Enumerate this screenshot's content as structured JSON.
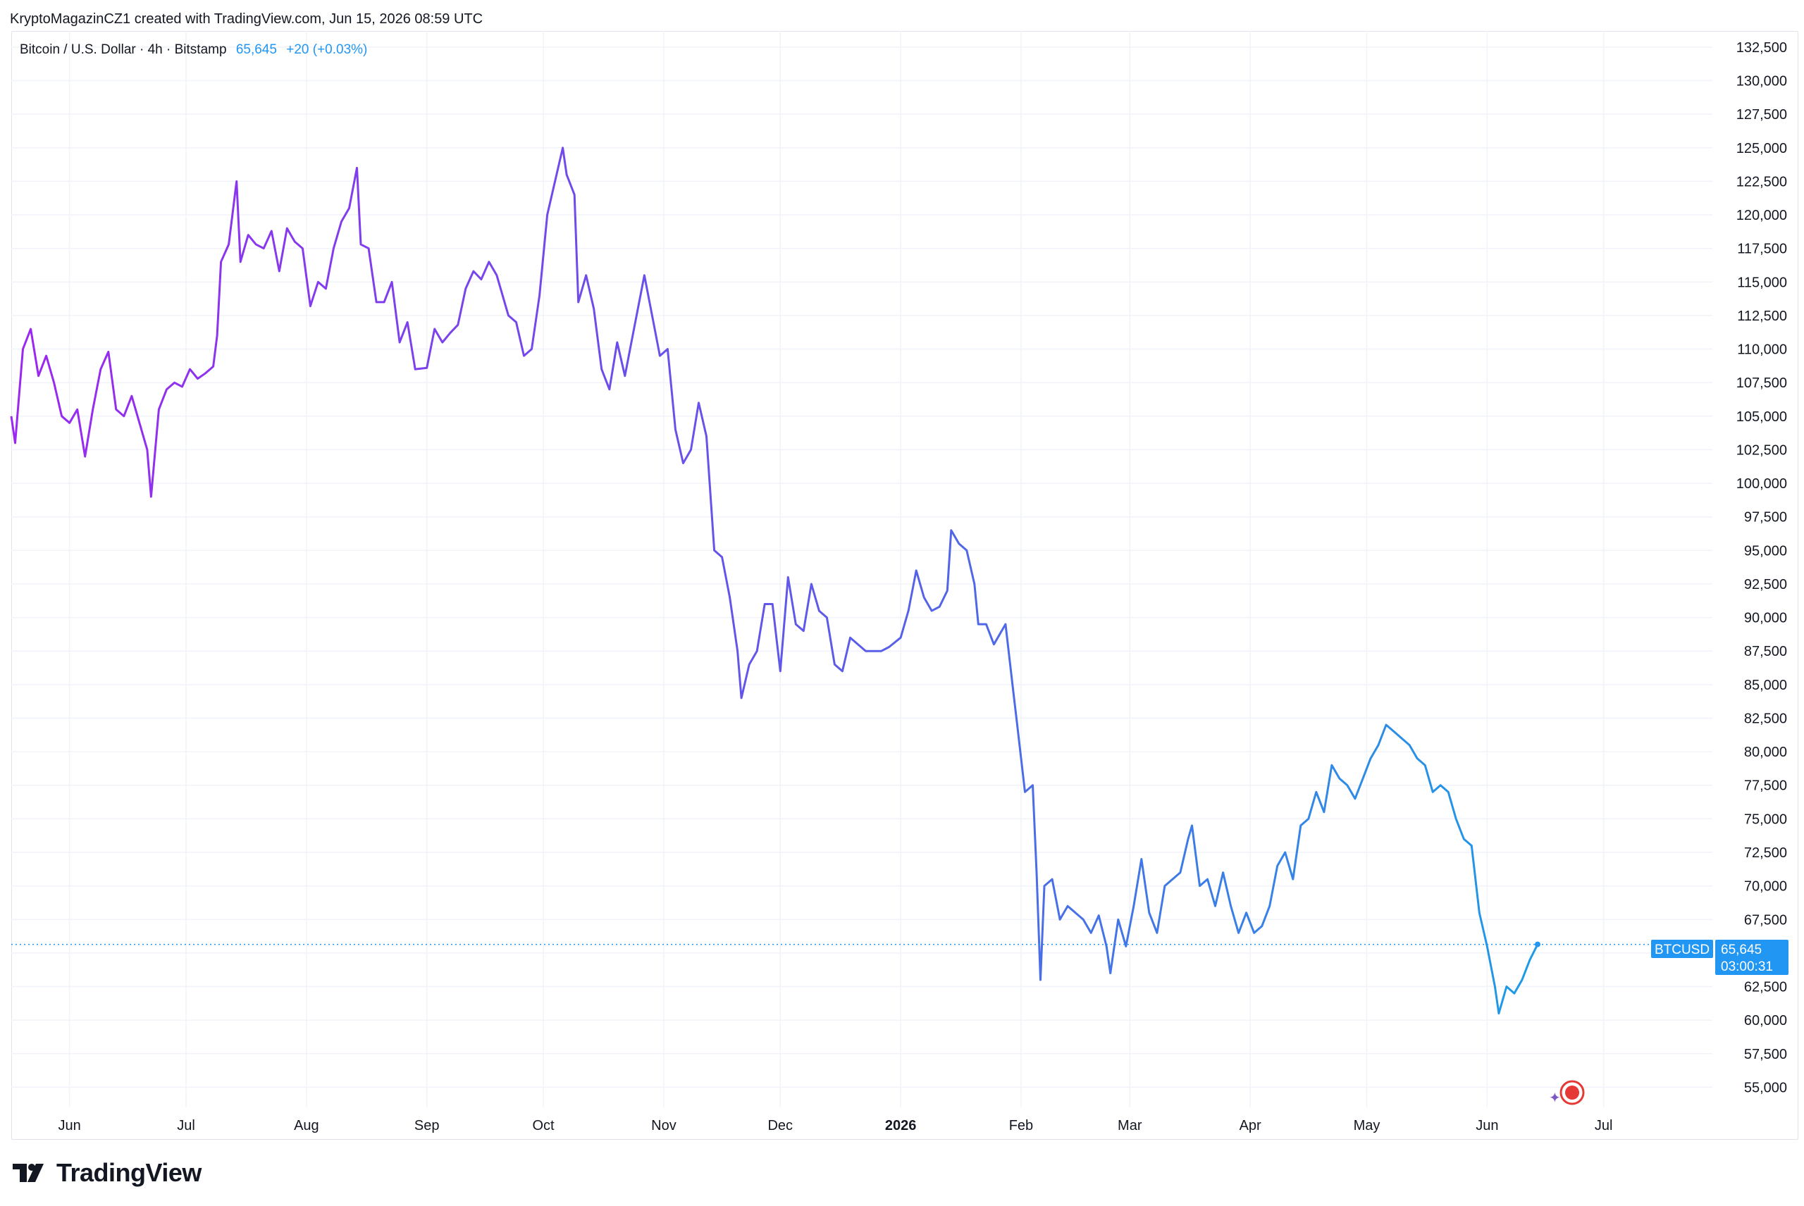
{
  "header": {
    "attribution": "KryptoMagazinCZ1 created with TradingView.com, Jun 15, 2026 08:59 UTC"
  },
  "legend": {
    "symbol": "Bitcoin / U.S. Dollar · 4h · Bitstamp",
    "price": "65,645",
    "change": "+20 (+0.03%)"
  },
  "price_tag": {
    "ticker": "BTCUSD",
    "price": "65,645",
    "countdown": "03:00:31"
  },
  "footer": {
    "brand": "TradingView"
  },
  "colors": {
    "gradient_start": "#9c27f0",
    "gradient_mid": "#5b5ce8",
    "gradient_end": "#1e9be6",
    "accent": "#2196f3",
    "grid": "#f0f3fa"
  },
  "chart_data": {
    "type": "line",
    "title": "Bitcoin / U.S. Dollar · 4h · Bitstamp",
    "xlabel": "",
    "ylabel": "",
    "ylim": [
      53500,
      133700
    ],
    "y_ticks": [
      55000,
      57500,
      60000,
      62500,
      65000,
      67500,
      70000,
      72500,
      75000,
      77500,
      80000,
      82500,
      85000,
      87500,
      90000,
      92500,
      95000,
      97500,
      100000,
      102500,
      105000,
      107500,
      110000,
      112500,
      115000,
      117500,
      120000,
      122500,
      125000,
      127500,
      130000,
      132500
    ],
    "y_tick_labels": [
      "55,000",
      "57,500",
      "60,000",
      "62,500",
      "65,000",
      "67,500",
      "70,000",
      "72,500",
      "75,000",
      "77,500",
      "80,000",
      "82,500",
      "85,000",
      "87,500",
      "90,000",
      "92,500",
      "95,000",
      "97,500",
      "100,000",
      "102,500",
      "105,000",
      "107,500",
      "110,000",
      "112,500",
      "115,000",
      "117,500",
      "120,000",
      "122,500",
      "125,000",
      "127,500",
      "130,000",
      "132,500"
    ],
    "x_range": [
      "2025-05-17",
      "2026-07-29"
    ],
    "x_ticks": [
      {
        "date": "2025-06-01",
        "label": "Jun"
      },
      {
        "date": "2025-07-01",
        "label": "Jul"
      },
      {
        "date": "2025-08-01",
        "label": "Aug"
      },
      {
        "date": "2025-09-01",
        "label": "Sep"
      },
      {
        "date": "2025-10-01",
        "label": "Oct"
      },
      {
        "date": "2025-11-01",
        "label": "Nov"
      },
      {
        "date": "2025-12-01",
        "label": "Dec"
      },
      {
        "date": "2026-01-01",
        "label": "2026",
        "bold": true
      },
      {
        "date": "2026-02-01",
        "label": "Feb"
      },
      {
        "date": "2026-03-01",
        "label": "Mar"
      },
      {
        "date": "2026-04-01",
        "label": "Apr"
      },
      {
        "date": "2026-05-01",
        "label": "May"
      },
      {
        "date": "2026-06-01",
        "label": "Jun"
      },
      {
        "date": "2026-07-01",
        "label": "Jul"
      }
    ],
    "last_price": 65645,
    "grid": true,
    "series": [
      {
        "values": [
          [
            "2025-05-17",
            105000
          ],
          [
            "2025-05-18",
            103000
          ],
          [
            "2025-05-20",
            110000
          ],
          [
            "2025-05-22",
            111500
          ],
          [
            "2025-05-24",
            108000
          ],
          [
            "2025-05-26",
            109500
          ],
          [
            "2025-05-28",
            107500
          ],
          [
            "2025-05-30",
            105000
          ],
          [
            "2025-06-01",
            104500
          ],
          [
            "2025-06-03",
            105500
          ],
          [
            "2025-06-05",
            102000
          ],
          [
            "2025-06-07",
            105500
          ],
          [
            "2025-06-09",
            108500
          ],
          [
            "2025-06-11",
            109800
          ],
          [
            "2025-06-13",
            105500
          ],
          [
            "2025-06-15",
            105000
          ],
          [
            "2025-06-17",
            106500
          ],
          [
            "2025-06-19",
            104500
          ],
          [
            "2025-06-21",
            102500
          ],
          [
            "2025-06-22",
            99000
          ],
          [
            "2025-06-24",
            105500
          ],
          [
            "2025-06-26",
            107000
          ],
          [
            "2025-06-28",
            107500
          ],
          [
            "2025-06-30",
            107200
          ],
          [
            "2025-07-02",
            108500
          ],
          [
            "2025-07-04",
            107800
          ],
          [
            "2025-07-06",
            108200
          ],
          [
            "2025-07-08",
            108700
          ],
          [
            "2025-07-09",
            111000
          ],
          [
            "2025-07-10",
            116500
          ],
          [
            "2025-07-12",
            117800
          ],
          [
            "2025-07-14",
            122500
          ],
          [
            "2025-07-15",
            116500
          ],
          [
            "2025-07-17",
            118500
          ],
          [
            "2025-07-19",
            117800
          ],
          [
            "2025-07-21",
            117500
          ],
          [
            "2025-07-23",
            118800
          ],
          [
            "2025-07-25",
            115800
          ],
          [
            "2025-07-27",
            119000
          ],
          [
            "2025-07-29",
            118000
          ],
          [
            "2025-07-31",
            117500
          ],
          [
            "2025-08-02",
            113200
          ],
          [
            "2025-08-04",
            115000
          ],
          [
            "2025-08-06",
            114500
          ],
          [
            "2025-08-08",
            117500
          ],
          [
            "2025-08-10",
            119500
          ],
          [
            "2025-08-12",
            120500
          ],
          [
            "2025-08-14",
            123500
          ],
          [
            "2025-08-15",
            117800
          ],
          [
            "2025-08-17",
            117500
          ],
          [
            "2025-08-19",
            113500
          ],
          [
            "2025-08-21",
            113500
          ],
          [
            "2025-08-23",
            115000
          ],
          [
            "2025-08-25",
            110500
          ],
          [
            "2025-08-27",
            112000
          ],
          [
            "2025-08-29",
            108500
          ],
          [
            "2025-09-01",
            108600
          ],
          [
            "2025-09-03",
            111500
          ],
          [
            "2025-09-05",
            110500
          ],
          [
            "2025-09-07",
            111200
          ],
          [
            "2025-09-09",
            111800
          ],
          [
            "2025-09-11",
            114500
          ],
          [
            "2025-09-13",
            115800
          ],
          [
            "2025-09-15",
            115200
          ],
          [
            "2025-09-17",
            116500
          ],
          [
            "2025-09-19",
            115500
          ],
          [
            "2025-09-22",
            112500
          ],
          [
            "2025-09-24",
            112000
          ],
          [
            "2025-09-26",
            109500
          ],
          [
            "2025-09-28",
            110000
          ],
          [
            "2025-09-30",
            114000
          ],
          [
            "2025-10-02",
            120000
          ],
          [
            "2025-10-04",
            122500
          ],
          [
            "2025-10-06",
            125000
          ],
          [
            "2025-10-07",
            123000
          ],
          [
            "2025-10-09",
            121500
          ],
          [
            "2025-10-10",
            113500
          ],
          [
            "2025-10-12",
            115500
          ],
          [
            "2025-10-14",
            113000
          ],
          [
            "2025-10-16",
            108500
          ],
          [
            "2025-10-18",
            107000
          ],
          [
            "2025-10-20",
            110500
          ],
          [
            "2025-10-22",
            108000
          ],
          [
            "2025-10-24",
            111000
          ],
          [
            "2025-10-27",
            115500
          ],
          [
            "2025-10-29",
            112500
          ],
          [
            "2025-10-31",
            109500
          ],
          [
            "2025-11-02",
            110000
          ],
          [
            "2025-11-04",
            104000
          ],
          [
            "2025-11-06",
            101500
          ],
          [
            "2025-11-08",
            102500
          ],
          [
            "2025-11-10",
            106000
          ],
          [
            "2025-11-12",
            103500
          ],
          [
            "2025-11-14",
            95000
          ],
          [
            "2025-11-16",
            94500
          ],
          [
            "2025-11-18",
            91500
          ],
          [
            "2025-11-20",
            87500
          ],
          [
            "2025-11-21",
            84000
          ],
          [
            "2025-11-23",
            86500
          ],
          [
            "2025-11-25",
            87500
          ],
          [
            "2025-11-27",
            91000
          ],
          [
            "2025-11-29",
            91000
          ],
          [
            "2025-12-01",
            86000
          ],
          [
            "2025-12-03",
            93000
          ],
          [
            "2025-12-05",
            89500
          ],
          [
            "2025-12-07",
            89000
          ],
          [
            "2025-12-09",
            92500
          ],
          [
            "2025-12-11",
            90500
          ],
          [
            "2025-12-13",
            90000
          ],
          [
            "2025-12-15",
            86500
          ],
          [
            "2025-12-17",
            86000
          ],
          [
            "2025-12-19",
            88500
          ],
          [
            "2025-12-21",
            88000
          ],
          [
            "2025-12-23",
            87500
          ],
          [
            "2025-12-25",
            87500
          ],
          [
            "2025-12-27",
            87500
          ],
          [
            "2025-12-29",
            87800
          ],
          [
            "2026-01-01",
            88500
          ],
          [
            "2026-01-03",
            90500
          ],
          [
            "2026-01-05",
            93500
          ],
          [
            "2026-01-07",
            91500
          ],
          [
            "2026-01-09",
            90500
          ],
          [
            "2026-01-11",
            90800
          ],
          [
            "2026-01-13",
            92000
          ],
          [
            "2026-01-14",
            96500
          ],
          [
            "2026-01-16",
            95500
          ],
          [
            "2026-01-18",
            95000
          ],
          [
            "2026-01-20",
            92500
          ],
          [
            "2026-01-21",
            89500
          ],
          [
            "2026-01-23",
            89500
          ],
          [
            "2026-01-25",
            88000
          ],
          [
            "2026-01-27",
            89000
          ],
          [
            "2026-01-28",
            89500
          ],
          [
            "2026-01-30",
            84500
          ],
          [
            "2026-01-31",
            82000
          ],
          [
            "2026-02-02",
            77000
          ],
          [
            "2026-02-04",
            77500
          ],
          [
            "2026-02-05",
            71000
          ],
          [
            "2026-02-06",
            63000
          ],
          [
            "2026-02-07",
            70000
          ],
          [
            "2026-02-09",
            70500
          ],
          [
            "2026-02-11",
            67500
          ],
          [
            "2026-02-13",
            68500
          ],
          [
            "2026-02-15",
            68000
          ],
          [
            "2026-02-17",
            67500
          ],
          [
            "2026-02-19",
            66500
          ],
          [
            "2026-02-21",
            67800
          ],
          [
            "2026-02-23",
            65500
          ],
          [
            "2026-02-24",
            63500
          ],
          [
            "2026-02-26",
            67500
          ],
          [
            "2026-02-28",
            65500
          ],
          [
            "2026-03-02",
            68500
          ],
          [
            "2026-03-04",
            72000
          ],
          [
            "2026-03-06",
            68000
          ],
          [
            "2026-03-08",
            66500
          ],
          [
            "2026-03-10",
            70000
          ],
          [
            "2026-03-12",
            70500
          ],
          [
            "2026-03-14",
            71000
          ],
          [
            "2026-03-16",
            73500
          ],
          [
            "2026-03-17",
            74500
          ],
          [
            "2026-03-19",
            70000
          ],
          [
            "2026-03-21",
            70500
          ],
          [
            "2026-03-23",
            68500
          ],
          [
            "2026-03-25",
            71000
          ],
          [
            "2026-03-27",
            68500
          ],
          [
            "2026-03-29",
            66500
          ],
          [
            "2026-03-31",
            68000
          ],
          [
            "2026-04-02",
            66500
          ],
          [
            "2026-04-04",
            67000
          ],
          [
            "2026-04-06",
            68500
          ],
          [
            "2026-04-08",
            71500
          ],
          [
            "2026-04-10",
            72500
          ],
          [
            "2026-04-12",
            70500
          ],
          [
            "2026-04-14",
            74500
          ],
          [
            "2026-04-16",
            75000
          ],
          [
            "2026-04-18",
            77000
          ],
          [
            "2026-04-20",
            75500
          ],
          [
            "2026-04-22",
            79000
          ],
          [
            "2026-04-24",
            78000
          ],
          [
            "2026-04-26",
            77500
          ],
          [
            "2026-04-28",
            76500
          ],
          [
            "2026-04-30",
            78000
          ],
          [
            "2026-05-02",
            79500
          ],
          [
            "2026-05-04",
            80500
          ],
          [
            "2026-05-06",
            82000
          ],
          [
            "2026-05-08",
            81500
          ],
          [
            "2026-05-10",
            81000
          ],
          [
            "2026-05-12",
            80500
          ],
          [
            "2026-05-14",
            79500
          ],
          [
            "2026-05-16",
            79000
          ],
          [
            "2026-05-18",
            77000
          ],
          [
            "2026-05-20",
            77500
          ],
          [
            "2026-05-22",
            77000
          ],
          [
            "2026-05-24",
            75000
          ],
          [
            "2026-05-26",
            73500
          ],
          [
            "2026-05-28",
            73000
          ],
          [
            "2026-05-30",
            68000
          ],
          [
            "2026-06-01",
            65500
          ],
          [
            "2026-06-03",
            62500
          ],
          [
            "2026-06-04",
            60500
          ],
          [
            "2026-06-06",
            62500
          ],
          [
            "2026-06-08",
            62000
          ],
          [
            "2026-06-10",
            63000
          ],
          [
            "2026-06-12",
            64500
          ],
          [
            "2026-06-14",
            65645
          ]
        ]
      }
    ]
  }
}
